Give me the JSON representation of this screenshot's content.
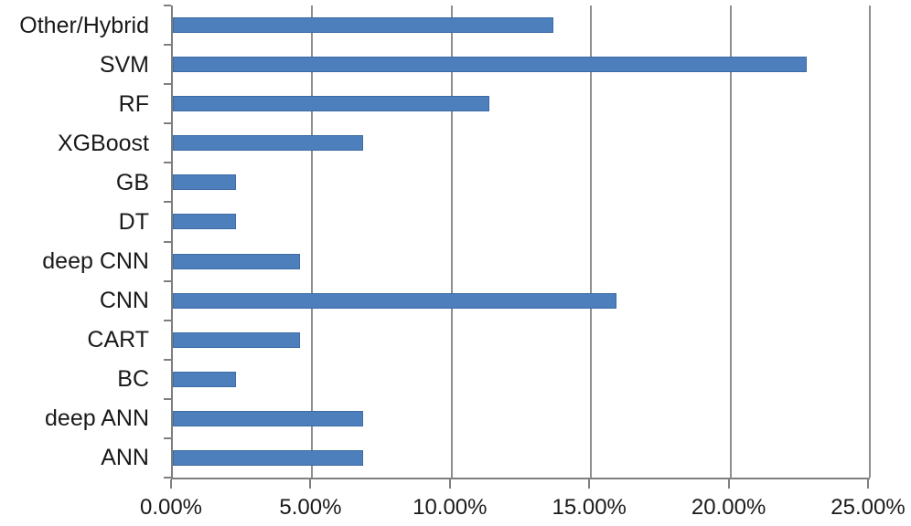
{
  "chart_data": {
    "type": "bar",
    "orientation": "horizontal",
    "title": "",
    "xlabel": "",
    "ylabel": "",
    "legend": "none",
    "grid": "vertical-major",
    "categories": [
      "Other/Hybrid",
      "SVM",
      "RF",
      "XGBoost",
      "GB",
      "DT",
      "deep CNN",
      "CNN",
      "CART",
      "BC",
      "deep ANN",
      "ANN"
    ],
    "values": [
      13.64,
      22.73,
      11.36,
      6.82,
      2.27,
      2.27,
      4.55,
      15.91,
      4.55,
      2.27,
      6.82,
      6.82
    ],
    "unit": "%",
    "xlim": [
      0,
      25
    ],
    "x_ticks": [
      {
        "value": 0,
        "label": "0.00%"
      },
      {
        "value": 5,
        "label": "5.00%"
      },
      {
        "value": 10,
        "label": "10.00%"
      },
      {
        "value": 15,
        "label": "15.00%"
      },
      {
        "value": 20,
        "label": "20.00%"
      },
      {
        "value": 25,
        "label": "25.00%"
      }
    ],
    "colors": {
      "bar_fill": "#4C7FBC",
      "bar_border": "#3D6BA5",
      "gridline": "#8E8E8E",
      "axis": "#7F7F7F",
      "text": "#1A1A1A",
      "background": "#FFFFFF"
    }
  }
}
